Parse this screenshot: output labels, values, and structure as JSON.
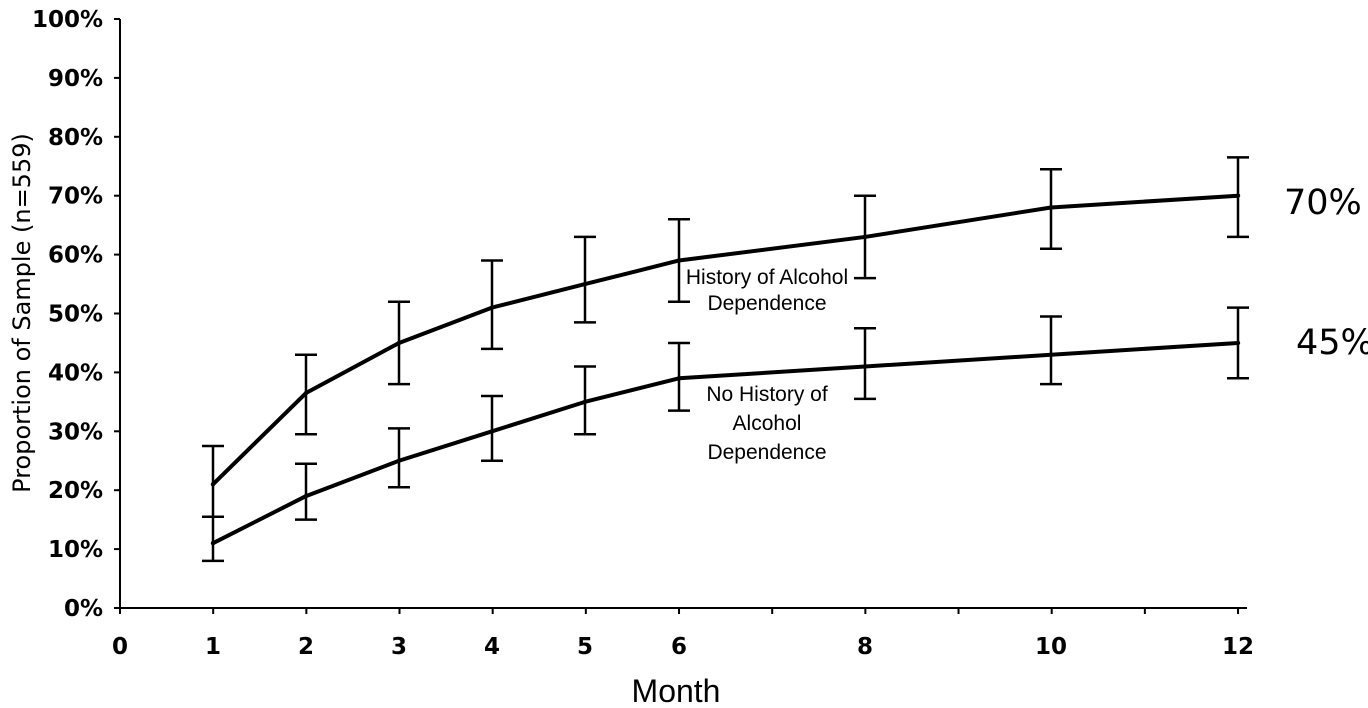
{
  "chart_data": {
    "type": "line",
    "xlabel": "Month",
    "ylabel": "Proportion of Sample (n=559)",
    "x_ticks": [
      0,
      1,
      2,
      3,
      4,
      5,
      6,
      8,
      10,
      12
    ],
    "y_ticks": [
      "0%",
      "10%",
      "20%",
      "30%",
      "40%",
      "50%",
      "60%",
      "70%",
      "80%",
      "90%",
      "100%"
    ],
    "ylim": [
      0,
      100
    ],
    "grid": false,
    "series": [
      {
        "name": "History of Alcohol Dependence",
        "label_lines": [
          "History of Alcohol",
          "Dependence"
        ],
        "end_label": "70%",
        "x": [
          1,
          2,
          3,
          4,
          5,
          6,
          8,
          10,
          12
        ],
        "y": [
          21,
          36.5,
          45,
          51,
          55,
          59,
          63,
          68,
          70
        ],
        "err_low": [
          15.5,
          29.5,
          38,
          44,
          48.5,
          52,
          56,
          61,
          63
        ],
        "err_high": [
          27.5,
          43,
          52,
          59,
          63,
          66,
          70,
          74.5,
          76.5
        ]
      },
      {
        "name": "No History of Alcohol Dependence",
        "label_lines": [
          "No History of",
          "Alcohol",
          "Dependence"
        ],
        "end_label": "45%",
        "x": [
          1,
          2,
          3,
          4,
          5,
          6,
          8,
          10,
          12
        ],
        "y": [
          11,
          19,
          25,
          30,
          35,
          39,
          41,
          43,
          45
        ],
        "err_low": [
          8,
          15,
          20.5,
          25,
          29.5,
          33.5,
          35.5,
          38,
          39
        ],
        "err_high": [
          15.5,
          24.5,
          30.5,
          36,
          41,
          45,
          47.5,
          49.5,
          51
        ]
      }
    ]
  }
}
